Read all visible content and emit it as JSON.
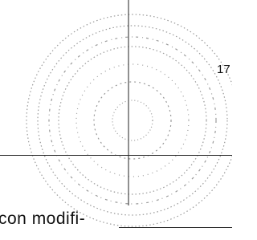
{
  "page_number": "17",
  "text_fragment": "con modifi-"
}
